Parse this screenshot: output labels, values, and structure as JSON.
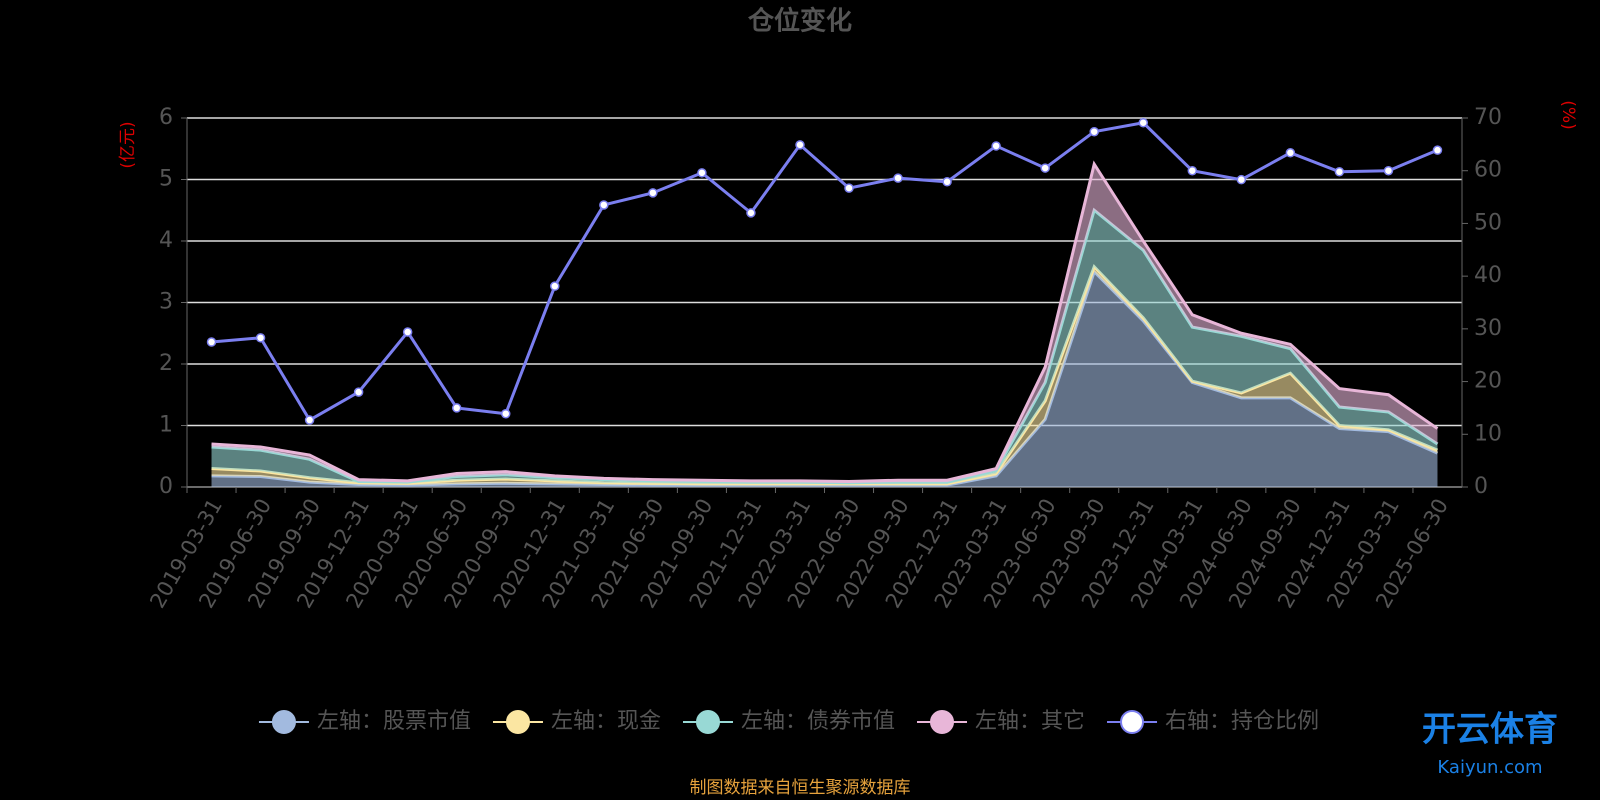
{
  "chart_data": {
    "type": "stacked-area-line",
    "title": "仓位变化",
    "y_label": "(亿元)",
    "y2_label": "(%)",
    "source": "制图数据来自恒生聚源数据库",
    "watermark": {
      "title": "开云体育",
      "url": "Kaiyun.com"
    },
    "categories": [
      "2019-03-31",
      "2019-06-30",
      "2019-09-30",
      "2019-12-31",
      "2020-03-31",
      "2020-06-30",
      "2020-09-30",
      "2020-12-31",
      "2021-03-31",
      "2021-06-30",
      "2021-09-30",
      "2021-12-31",
      "2022-03-31",
      "2022-06-30",
      "2022-09-30",
      "2022-12-31",
      "2023-03-31",
      "2023-06-30",
      "2023-09-30",
      "2023-12-31",
      "2024-03-31",
      "2024-06-30",
      "2024-09-30",
      "2024-12-31",
      "2025-03-31",
      "2025-06-30"
    ],
    "ylim": [
      0,
      6
    ],
    "yticks": [
      0,
      1,
      2,
      3,
      4,
      5,
      6
    ],
    "y2lim": [
      0,
      70
    ],
    "y2ticks": [
      0,
      10,
      20,
      30,
      40,
      50,
      60,
      70
    ],
    "grid": true,
    "legend": "bottom",
    "series": [
      {
        "name": "左轴：股票市值",
        "color": "#a2badf",
        "stack": true,
        "values": [
          0.18,
          0.17,
          0.08,
          0.04,
          0.03,
          0.05,
          0.06,
          0.05,
          0.04,
          0.03,
          0.03,
          0.03,
          0.03,
          0.03,
          0.03,
          0.03,
          0.18,
          1.1,
          3.5,
          2.7,
          1.7,
          1.45,
          1.45,
          0.95,
          0.9,
          0.55
        ]
      },
      {
        "name": "左轴：现金",
        "color": "#fbe6a2",
        "stack": true,
        "values": [
          0.12,
          0.09,
          0.07,
          0.03,
          0.03,
          0.06,
          0.07,
          0.05,
          0.03,
          0.03,
          0.02,
          0.02,
          0.02,
          0.02,
          0.02,
          0.02,
          0.04,
          0.3,
          0.08,
          0.05,
          0.02,
          0.08,
          0.4,
          0.05,
          0.03,
          0.05
        ]
      },
      {
        "name": "左轴：债券市值",
        "color": "#98d9d5",
        "stack": true,
        "values": [
          0.35,
          0.34,
          0.3,
          0.02,
          0.02,
          0.06,
          0.07,
          0.05,
          0.05,
          0.04,
          0.04,
          0.03,
          0.03,
          0.02,
          0.03,
          0.03,
          0.05,
          0.3,
          0.92,
          1.1,
          0.88,
          0.92,
          0.4,
          0.3,
          0.29,
          0.1
        ]
      },
      {
        "name": "左轴：其它",
        "color": "#e8b6d8",
        "stack": true,
        "values": [
          0.05,
          0.05,
          0.07,
          0.03,
          0.02,
          0.05,
          0.05,
          0.03,
          0.02,
          0.02,
          0.02,
          0.02,
          0.02,
          0.02,
          0.03,
          0.03,
          0.03,
          0.25,
          0.75,
          0.15,
          0.2,
          0.05,
          0.07,
          0.3,
          0.28,
          0.25
        ]
      },
      {
        "name": "右轴：持仓比例",
        "color": "#7b7ff0",
        "axis": "y2",
        "values": [
          27.5,
          28.3,
          12.7,
          18,
          29.4,
          15,
          13.9,
          38.1,
          53.5,
          55.8,
          59.6,
          52,
          64.9,
          56.7,
          58.6,
          57.9,
          64.7,
          60.5,
          67.4,
          69.1,
          60,
          58.3,
          63.4,
          59.8,
          60,
          63.9
        ]
      }
    ]
  }
}
